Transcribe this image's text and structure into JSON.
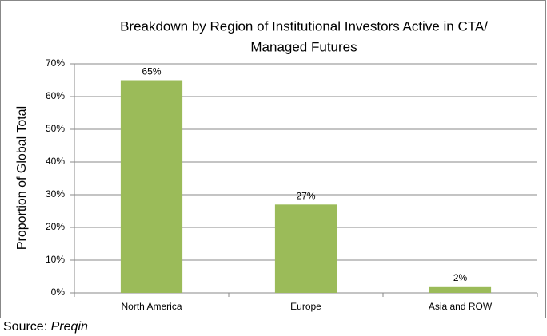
{
  "chart_data": {
    "type": "bar",
    "title": [
      "Breakdown by Region of Institutional Investors Active in CTA/",
      "Managed Futures"
    ],
    "y_label": "Proportion of Global Total",
    "categories": [
      "North America",
      "Europe",
      "Asia and ROW"
    ],
    "values": [
      65,
      27,
      2
    ],
    "value_labels": [
      "65%",
      "27%",
      "2%"
    ],
    "color": "#9bbb59",
    "ylim": [
      0,
      70
    ],
    "yticks": [
      {
        "value": 0,
        "label": "0%"
      },
      {
        "value": 10,
        "label": "10%"
      },
      {
        "value": 20,
        "label": "20%"
      },
      {
        "value": 30,
        "label": "30%"
      },
      {
        "value": 40,
        "label": "40%"
      },
      {
        "value": 50,
        "label": "50%"
      },
      {
        "value": 60,
        "label": "60%"
      },
      {
        "value": 70,
        "label": "70%"
      }
    ],
    "grid": true,
    "source_label": "Source:",
    "source": "Preqin"
  }
}
